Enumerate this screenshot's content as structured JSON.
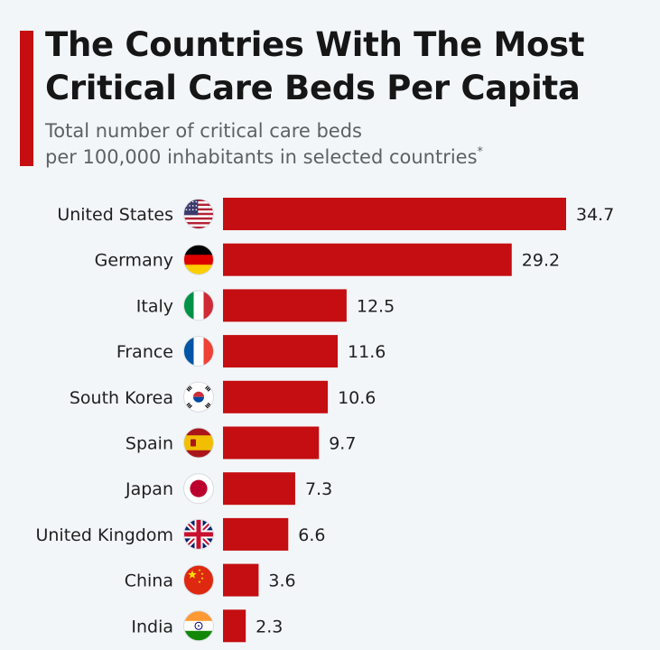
{
  "header": {
    "title": "The Countries With The Most Critical Care Beds Per Capita",
    "subtitle_line1": "Total number of critical care beds",
    "subtitle_line2": "per 100,000 inhabitants in selected countries",
    "subtitle_footnote_mark": "*"
  },
  "colors": {
    "bar": "#c40e12",
    "accent": "#c40e12"
  },
  "chart_data": {
    "type": "bar",
    "orientation": "horizontal",
    "title": "The Countries With The Most Critical Care Beds Per Capita",
    "subtitle": "Total number of critical care beds per 100,000 inhabitants in selected countries*",
    "xlabel": "",
    "ylabel": "",
    "xlim": [
      0,
      34.7
    ],
    "grid": false,
    "categories": [
      "United States",
      "Germany",
      "Italy",
      "France",
      "South Korea",
      "Spain",
      "Japan",
      "United Kingdom",
      "China",
      "India"
    ],
    "values": [
      34.7,
      29.2,
      12.5,
      11.6,
      10.6,
      9.7,
      7.3,
      6.6,
      3.6,
      2.3
    ],
    "value_labels": [
      "34.7",
      "29.2",
      "12.5",
      "11.6",
      "10.6",
      "9.7",
      "7.3",
      "6.6",
      "3.6",
      "2.3"
    ],
    "flag_icons": [
      "us-flag-icon",
      "germany-flag-icon",
      "italy-flag-icon",
      "france-flag-icon",
      "south-korea-flag-icon",
      "spain-flag-icon",
      "japan-flag-icon",
      "uk-flag-icon",
      "china-flag-icon",
      "india-flag-icon"
    ]
  }
}
